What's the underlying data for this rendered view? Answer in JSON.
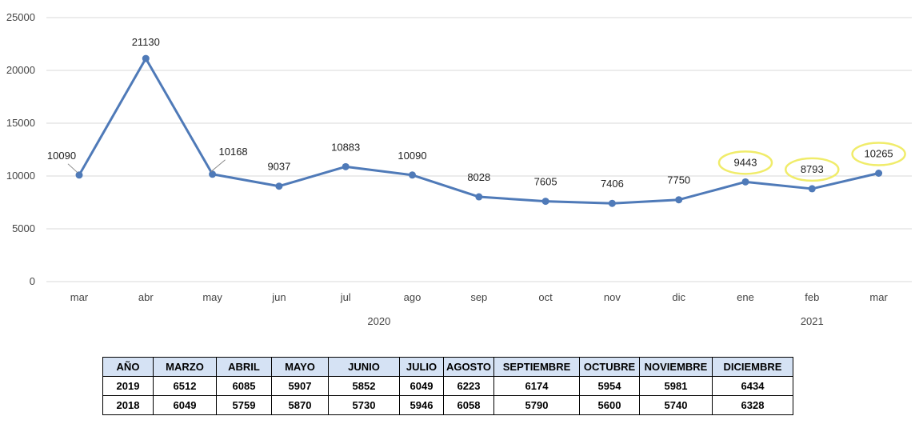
{
  "chart_data": {
    "type": "line",
    "title": "",
    "xlabel": "",
    "ylabel": "",
    "ylim": [
      0,
      25000
    ],
    "yticks": [
      0,
      5000,
      10000,
      15000,
      20000,
      25000
    ],
    "grid": true,
    "categories": [
      "mar",
      "abr",
      "may",
      "jun",
      "jul",
      "ago",
      "sep",
      "oct",
      "nov",
      "dic",
      "ene",
      "feb",
      "mar"
    ],
    "year_groups": [
      {
        "label": "2020",
        "from": 0,
        "to": 9
      },
      {
        "label": "2021",
        "from": 10,
        "to": 12
      }
    ],
    "series": [
      {
        "values": [
          10090,
          21130,
          10168,
          9037,
          10883,
          10090,
          8028,
          7605,
          7406,
          7750,
          9443,
          8793,
          10265
        ]
      }
    ],
    "highlighted_points": [
      10,
      11,
      12
    ],
    "series_color": "#4f7ab8",
    "highlight_color": "#f0ec6a"
  },
  "table": {
    "headers": [
      "AÑO",
      "MARZO",
      "ABRIL",
      "MAYO",
      "JUNIO",
      "JULIO",
      "AGOSTO",
      "SEPTIEMBRE",
      "OCTUBRE",
      "NOVIEMBRE",
      "DICIEMBRE"
    ],
    "rows": [
      [
        "2019",
        "6512",
        "6085",
        "5907",
        "5852",
        "6049",
        "6223",
        "6174",
        "5954",
        "5981",
        "6434"
      ],
      [
        "2018",
        "6049",
        "5759",
        "5870",
        "5730",
        "5946",
        "6058",
        "5790",
        "5600",
        "5740",
        "6328"
      ]
    ],
    "header_bg": "#d5e2f4"
  }
}
